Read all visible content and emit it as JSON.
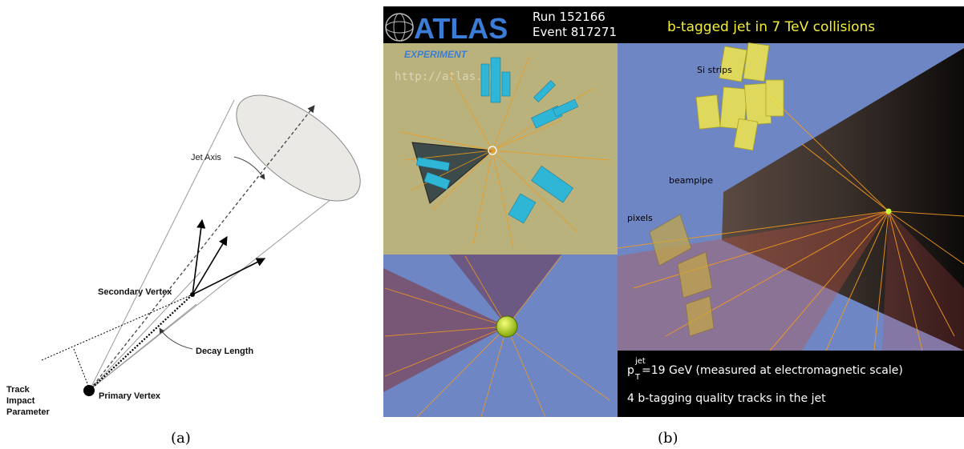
{
  "panel_a": {
    "labels": {
      "jet_axis": "Jet Axis",
      "secondary_vertex": "Secondary Vertex",
      "decay_length": "Decay Length",
      "primary_vertex": "Primary Vertex",
      "track_impact_parameter_l1": "Track",
      "track_impact_parameter_l2": "Impact",
      "track_impact_parameter_l3": "Parameter"
    },
    "caption": "(a)"
  },
  "panel_b": {
    "logo_text": "ATLAS",
    "logo_sub": "EXPERIMENT",
    "logo_url": "http://atlas.ch",
    "run": "Run 152166",
    "event": "Event 817271",
    "title": "b-tagged jet in 7 TeV collisions",
    "labels": {
      "si_strips": "Si strips",
      "beampipe": "beampipe",
      "pixels": "pixels"
    },
    "info": {
      "pt_symbol": "p",
      "pt_sub": "T",
      "pt_sup": "jet",
      "pt_text": "=19 GeV (measured at electromagnetic scale)",
      "tracks_text": "4 b-tagging quality tracks in the jet"
    },
    "caption": "(b)",
    "colors": {
      "header_bg": "#000000",
      "title_yellow": "#f4ee3a",
      "panel_olive": "#b9b27c",
      "panel_blue": "#6f86c4",
      "track_orange": "#f39a1c",
      "cell_cyan": "#2fb6d6",
      "strip_yellow": "#f2e84a"
    }
  }
}
